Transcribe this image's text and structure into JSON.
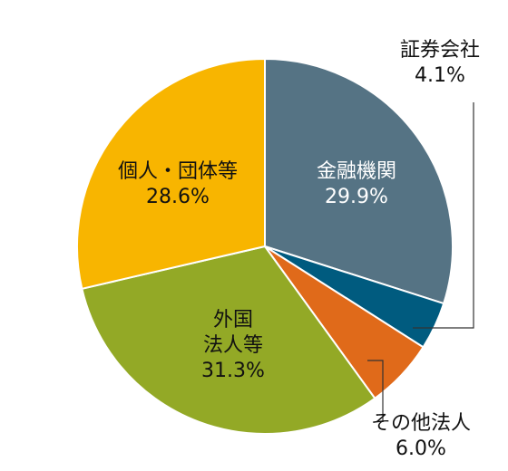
{
  "chart_data": {
    "type": "pie",
    "slices": [
      {
        "label": "金融機関",
        "value": 29.9,
        "value_label": "29.9%",
        "color": "#557384",
        "label_color": "#ffffff"
      },
      {
        "label": "証券会社",
        "value": 4.1,
        "value_label": "4.1%",
        "color": "#005b7f",
        "label_color": "#111111"
      },
      {
        "label": "その他法人",
        "value": 6.0,
        "value_label": "6.0%",
        "color": "#e06a1a",
        "label_color": "#111111"
      },
      {
        "label": "外国法人等",
        "value": 31.3,
        "value_label": "31.3%",
        "color": "#93a926",
        "label_color": "#111111"
      },
      {
        "label": "個人・団体等",
        "value": 28.6,
        "value_label": "28.6%",
        "color": "#f8b500",
        "label_color": "#111111"
      }
    ],
    "start": "top",
    "direction": "clockwise"
  }
}
